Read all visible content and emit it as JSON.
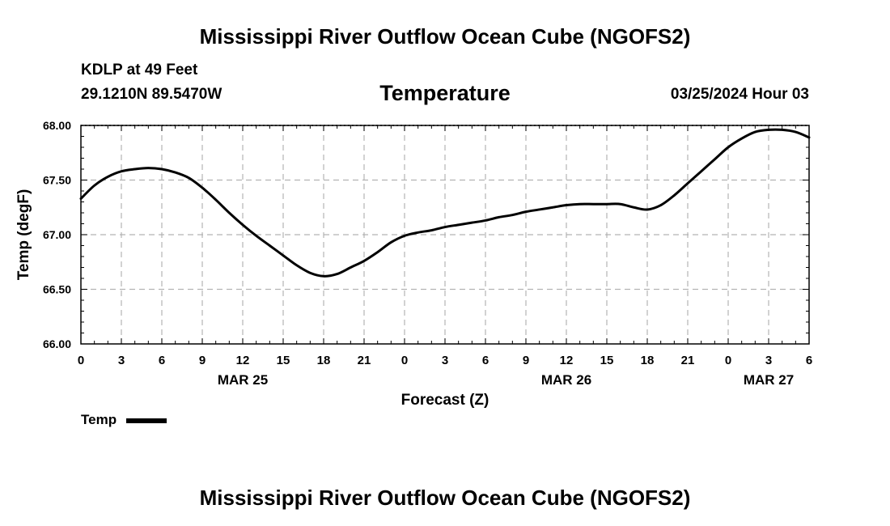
{
  "header": {
    "title": "Mississippi River Outflow Ocean Cube (NGOFS2)",
    "station": "KDLP at 49 Feet",
    "coordinates": "29.1210N  89.5470W",
    "chart_title": "Temperature",
    "datetime": "03/25/2024 Hour 03"
  },
  "footer": {
    "title": "Mississippi River Outflow Ocean Cube (NGOFS2)"
  },
  "legend": {
    "label": "Temp"
  },
  "chart_data": {
    "type": "line",
    "title": "Temperature",
    "xlabel": "Forecast (Z)",
    "ylabel": "Temp (degF)",
    "xlim": [
      0,
      54
    ],
    "ylim": [
      66.0,
      68.0
    ],
    "grid": true,
    "legend_position": "bottom-left",
    "x_ticks": [
      0,
      3,
      6,
      9,
      12,
      15,
      18,
      21,
      24,
      27,
      30,
      33,
      36,
      39,
      42,
      45,
      48,
      51,
      54
    ],
    "x_tick_labels": [
      "0",
      "3",
      "6",
      "9",
      "12",
      "15",
      "18",
      "21",
      "0",
      "3",
      "6",
      "9",
      "12",
      "15",
      "18",
      "21",
      "0",
      "3",
      "6"
    ],
    "y_ticks": [
      66.0,
      66.5,
      67.0,
      67.5,
      68.0
    ],
    "y_tick_labels": [
      "66.00",
      "66.50",
      "67.00",
      "67.50",
      "68.00"
    ],
    "date_labels": [
      {
        "x": 12,
        "label": "MAR 25"
      },
      {
        "x": 36,
        "label": "MAR 26"
      },
      {
        "x": 51,
        "label": "MAR 27"
      }
    ],
    "series": [
      {
        "name": "Temp",
        "color": "#000000",
        "x": [
          0,
          1,
          2,
          3,
          4,
          5,
          6,
          7,
          8,
          9,
          10,
          11,
          12,
          13,
          14,
          15,
          16,
          17,
          18,
          19,
          20,
          21,
          22,
          23,
          24,
          25,
          26,
          27,
          28,
          29,
          30,
          31,
          32,
          33,
          34,
          35,
          36,
          37,
          38,
          39,
          40,
          41,
          42,
          43,
          44,
          45,
          46,
          47,
          48,
          49,
          50,
          51,
          52,
          53,
          54
        ],
        "values": [
          67.33,
          67.45,
          67.53,
          67.58,
          67.6,
          67.61,
          67.6,
          67.57,
          67.52,
          67.43,
          67.32,
          67.2,
          67.09,
          66.99,
          66.9,
          66.81,
          66.72,
          66.65,
          66.62,
          66.64,
          66.7,
          66.76,
          66.84,
          66.93,
          66.99,
          67.02,
          67.04,
          67.07,
          67.09,
          67.11,
          67.13,
          67.16,
          67.18,
          67.21,
          67.23,
          67.25,
          67.27,
          67.28,
          67.28,
          67.28,
          67.28,
          67.25,
          67.23,
          67.27,
          67.36,
          67.47,
          67.58,
          67.69,
          67.8,
          67.88,
          67.94,
          67.96,
          67.96,
          67.94,
          67.89
        ]
      }
    ]
  }
}
